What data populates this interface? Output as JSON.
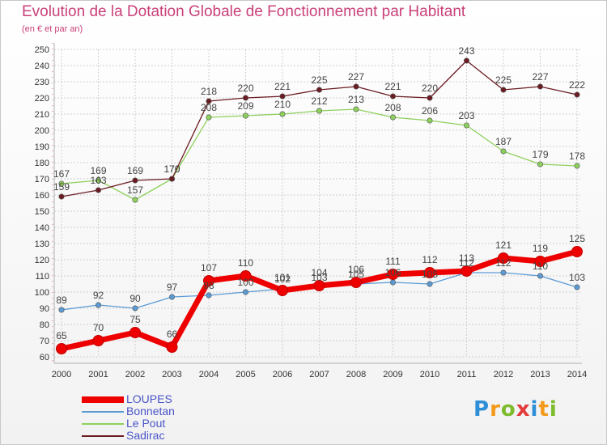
{
  "header": {
    "title": "Evolution de la Dotation Globale de Fonctionnement par Habitant",
    "subtitle": "(en € et par an)"
  },
  "brand": {
    "letters": [
      "P",
      "r",
      "o",
      "x",
      "i",
      "t",
      "i"
    ]
  },
  "colors": {
    "title": "#c9417a",
    "loupes": "#ee0000",
    "bonnetan": "#5b9bd5",
    "le_pout": "#8ed05c",
    "sadirac": "#6b1c22"
  },
  "chart_data": {
    "type": "line",
    "title": "Evolution de la Dotation Globale de Fonctionnement par Habitant",
    "subtitle": "(en € et par an)",
    "x": [
      "2000",
      "2001",
      "2002",
      "2003",
      "2004",
      "2005",
      "2006",
      "2007",
      "2008",
      "2009",
      "2010",
      "2011",
      "2012",
      "2013",
      "2014"
    ],
    "ylim": [
      60,
      250
    ],
    "yticks": [
      60,
      70,
      80,
      90,
      100,
      110,
      120,
      130,
      140,
      150,
      160,
      170,
      180,
      190,
      200,
      210,
      220,
      230,
      240,
      250
    ],
    "grid": true,
    "legend_position": "bottom-left",
    "series": [
      {
        "name": "Bonnetan",
        "key": "bonnetan",
        "values": [
          89,
          92,
          90,
          97,
          98,
          100,
          102,
          103,
          105,
          106,
          105,
          112,
          112,
          110,
          103
        ]
      },
      {
        "name": "Le Pout",
        "key": "le_pout",
        "values": [
          167,
          169,
          157,
          170,
          208,
          209,
          210,
          212,
          213,
          208,
          206,
          203,
          187,
          179,
          178
        ]
      },
      {
        "name": "Sadirac",
        "key": "sadirac",
        "values": [
          159,
          163,
          169,
          170,
          218,
          220,
          221,
          225,
          227,
          221,
          220,
          243,
          225,
          227,
          222
        ]
      },
      {
        "name": "LOUPES",
        "key": "loupes",
        "values": [
          65,
          70,
          75,
          66,
          107,
          110,
          101,
          104,
          106,
          111,
          112,
          113,
          121,
          119,
          125
        ]
      }
    ],
    "legend_order": [
      "LOUPES",
      "Bonnetan",
      "Le Pout",
      "Sadirac"
    ]
  }
}
